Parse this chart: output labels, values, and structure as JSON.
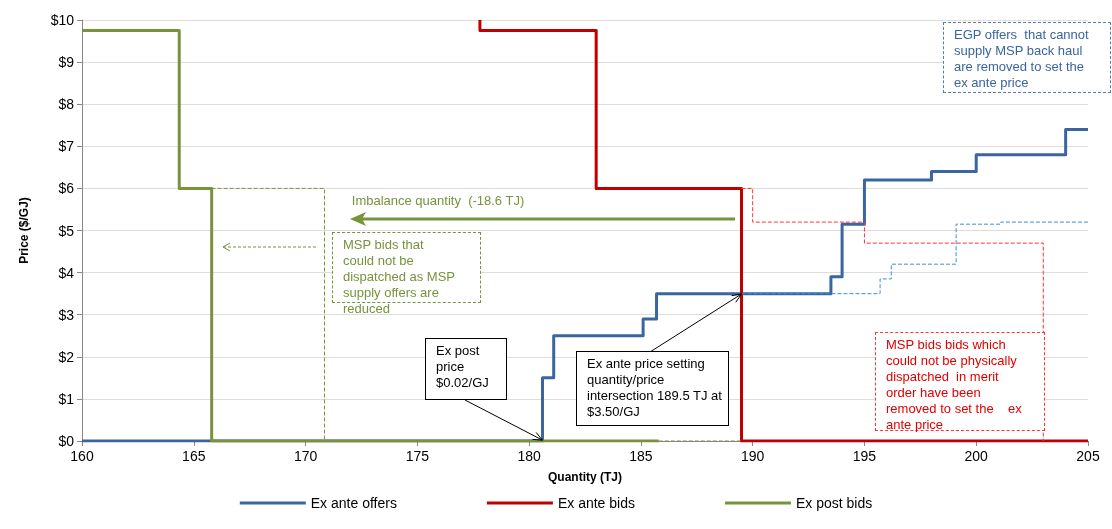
{
  "chart_data": {
    "type": "line",
    "xlabel": "Quantity (TJ)",
    "ylabel": "Price ($/GJ)",
    "xlim": [
      160,
      205
    ],
    "xticks": [
      160,
      165,
      170,
      175,
      180,
      185,
      190,
      195,
      200,
      205
    ],
    "ylim": [
      0,
      10
    ],
    "yticks": [
      {
        "value": 0,
        "label": "$0"
      },
      {
        "value": 1,
        "label": "$1"
      },
      {
        "value": 2,
        "label": "$2"
      },
      {
        "value": 3,
        "label": "$3"
      },
      {
        "value": 4,
        "label": "$4"
      },
      {
        "value": 5,
        "label": "$5"
      },
      {
        "value": 6,
        "label": "$6"
      },
      {
        "value": 7,
        "label": "$7"
      },
      {
        "value": 8,
        "label": "$8"
      },
      {
        "value": 9,
        "label": "$9"
      },
      {
        "value": 10,
        "label": "$10"
      }
    ],
    "grid": "y",
    "legend": "bottom",
    "marker": "none",
    "line_style": "solid",
    "series": [
      {
        "name": "Ex ante offers",
        "color": "#3a65a0",
        "x": [
          160,
          180.6,
          180.6,
          181.1,
          181.1,
          185.1,
          185.1,
          185.7,
          185.7,
          193.5,
          193.5,
          194,
          194,
          195,
          195,
          198,
          198,
          200,
          200,
          204,
          204,
          205
        ],
        "values": [
          0,
          0,
          1.5,
          1.5,
          2.5,
          2.5,
          2.9,
          2.9,
          3.5,
          3.5,
          3.9,
          3.9,
          5.15,
          5.15,
          6.2,
          6.2,
          6.4,
          6.4,
          6.8,
          6.8,
          7.4,
          7.4
        ]
      },
      {
        "name": "Ex ante bids",
        "color": "#c00000",
        "x": [
          177.8,
          177.8,
          183,
          183,
          189.5,
          189.5,
          205
        ],
        "values": [
          10,
          9.75,
          9.75,
          6,
          6,
          0,
          0
        ]
      },
      {
        "name": "Ex post bids",
        "color": "#77933c",
        "x": [
          160,
          164.35,
          164.35,
          165.8,
          165.8,
          185.8
        ],
        "values": [
          9.75,
          9.75,
          6,
          6,
          0,
          0
        ]
      },
      {
        "color": "#3c8fd6",
        "line_style": "dashed",
        "x": [
          189.5,
          195.7,
          195.7,
          196.2,
          196.2,
          199.1,
          199.1,
          201.1,
          201.1,
          205
        ],
        "values": [
          3.5,
          3.5,
          3.85,
          3.85,
          4.2,
          4.2,
          5.15,
          5.15,
          5.2,
          5.2
        ]
      },
      {
        "color": "#ff3333",
        "line_style": "dashed",
        "x": [
          189.5,
          190,
          190,
          195,
          195,
          203,
          203
        ],
        "values": [
          6,
          6,
          5.2,
          5.2,
          4.7,
          4.7,
          0
        ]
      },
      {
        "color": "#77933c",
        "line_style": "dashed",
        "x": [
          165.8,
          170.85,
          170.85
        ],
        "values": [
          6,
          6,
          0
        ]
      },
      {
        "color": "#77933c",
        "line_style": "dashed",
        "x": [
          185.8,
          189.5
        ],
        "values": [
          0,
          0
        ]
      }
    ],
    "annotations": [
      {
        "text": "Imbalance quantity  (-18.6 TJ)",
        "x": 189.2,
        "y": 5.27
      },
      "MSP bids that could not be dispatched as MSP supply offers are reduced",
      "EGP offers  that cannot supply MSP back haul are removed to set the ex ante price",
      "MSP bids bids which could not be physically dispatched  in merit order have been removed to set the    ex ante price",
      {
        "text": "Ex post price $0.02/GJ",
        "x": 180.6,
        "y": 0.02
      },
      {
        "text": "Ex ante price setting quantity/price intersection 189.5 TJ at  $3.50/GJ",
        "x": 189.5,
        "y": 3.5
      }
    ]
  }
}
